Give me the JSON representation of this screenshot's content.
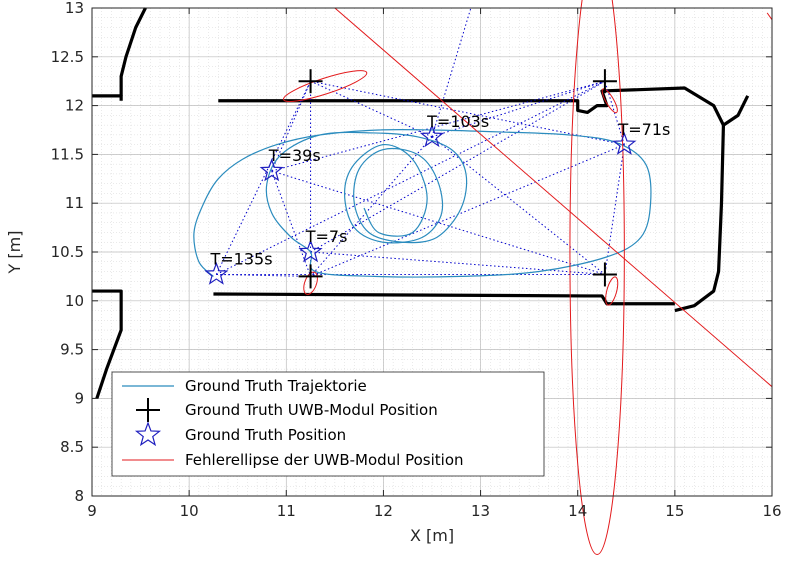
{
  "chart_data": {
    "type": "scatter",
    "title": "",
    "xlabel": "X [m]",
    "ylabel": "Y [m]",
    "xlim": [
      9,
      16
    ],
    "ylim": [
      8,
      13
    ],
    "grid": "on",
    "minor_grid": "on",
    "legend_position": "bottom-left",
    "x_ticks": [
      {
        "value": 9,
        "label": "9"
      },
      {
        "value": 10,
        "label": "10"
      },
      {
        "value": 11,
        "label": "11"
      },
      {
        "value": 12,
        "label": "12"
      },
      {
        "value": 13,
        "label": "13"
      },
      {
        "value": 14,
        "label": "14"
      },
      {
        "value": 15,
        "label": "15"
      },
      {
        "value": 16,
        "label": "16"
      }
    ],
    "y_ticks": [
      {
        "value": 8,
        "label": "8"
      },
      {
        "value": 8.5,
        "label": "8.5"
      },
      {
        "value": 9,
        "label": "9"
      },
      {
        "value": 9.5,
        "label": "9.5"
      },
      {
        "value": 10,
        "label": "10"
      },
      {
        "value": 10.5,
        "label": "10.5"
      },
      {
        "value": 11,
        "label": "11"
      },
      {
        "value": 11.5,
        "label": "11.5"
      },
      {
        "value": 12,
        "label": "12"
      },
      {
        "value": 12.5,
        "label": "12.5"
      },
      {
        "value": 13,
        "label": "13"
      }
    ],
    "series": [
      {
        "name": "Ground Truth Trajektorie",
        "kind": "line",
        "color": "#2b8cbe",
        "points": [
          [
            10.25,
            10.25
          ],
          [
            10.1,
            10.4
          ],
          [
            10.05,
            10.7
          ],
          [
            10.15,
            11.0
          ],
          [
            10.3,
            11.25
          ],
          [
            10.55,
            11.45
          ],
          [
            10.9,
            11.6
          ],
          [
            11.35,
            11.7
          ],
          [
            11.95,
            11.75
          ],
          [
            12.5,
            11.75
          ],
          [
            13.2,
            11.73
          ],
          [
            13.9,
            11.7
          ],
          [
            14.4,
            11.62
          ],
          [
            14.7,
            11.4
          ],
          [
            14.75,
            11.0
          ],
          [
            14.65,
            10.65
          ],
          [
            14.3,
            10.45
          ],
          [
            13.6,
            10.3
          ],
          [
            12.8,
            10.25
          ],
          [
            11.9,
            10.25
          ],
          [
            11.3,
            10.3
          ],
          [
            11.25,
            10.5
          ],
          [
            11.05,
            10.65
          ],
          [
            10.85,
            10.9
          ],
          [
            10.8,
            11.2
          ],
          [
            10.95,
            11.5
          ],
          [
            11.35,
            11.7
          ],
          [
            11.9,
            11.72
          ],
          [
            12.35,
            11.68
          ],
          [
            12.7,
            11.55
          ],
          [
            12.85,
            11.3
          ],
          [
            12.8,
            10.95
          ],
          [
            12.55,
            10.65
          ],
          [
            12.2,
            10.6
          ],
          [
            11.85,
            10.7
          ],
          [
            11.7,
            11.0
          ],
          [
            11.75,
            11.35
          ],
          [
            12.0,
            11.55
          ],
          [
            12.35,
            11.5
          ],
          [
            12.55,
            11.25
          ],
          [
            12.6,
            10.9
          ],
          [
            12.4,
            10.65
          ],
          [
            12.0,
            10.6
          ],
          [
            11.7,
            10.75
          ],
          [
            11.6,
            11.1
          ],
          [
            11.7,
            11.4
          ],
          [
            12.0,
            11.6
          ],
          [
            12.3,
            11.45
          ],
          [
            12.45,
            11.05
          ],
          [
            12.3,
            10.7
          ],
          [
            11.95,
            10.7
          ],
          [
            11.8,
            10.95
          ]
        ]
      },
      {
        "name": "Ground Truth UWB-Modul Position",
        "kind": "marker-plus",
        "color": "#000000",
        "points": [
          [
            11.25,
            12.25
          ],
          [
            14.28,
            12.25
          ],
          [
            11.25,
            10.25
          ],
          [
            14.28,
            10.27
          ]
        ]
      },
      {
        "name": "Ground Truth Position",
        "kind": "marker-star",
        "color": "#1f1fbf",
        "points": [
          [
            12.5,
            11.68
          ],
          [
            14.48,
            11.6
          ],
          [
            10.85,
            11.33
          ],
          [
            11.25,
            10.5
          ],
          [
            10.28,
            10.27
          ]
        ]
      },
      {
        "name": "Fehlerellipse der UWB-Modul Position",
        "kind": "ellipse",
        "color": "#e31a1c",
        "ellipses": [
          {
            "cx": 11.4,
            "cy": 12.2,
            "rx": 0.45,
            "ry": 0.08,
            "angle_deg": -18
          },
          {
            "cx": 11.25,
            "cy": 10.18,
            "rx": 0.12,
            "ry": 0.06,
            "angle_deg": -70
          },
          {
            "cx": 14.35,
            "cy": 10.1,
            "rx": 0.15,
            "ry": 0.05,
            "angle_deg": -75
          },
          {
            "cx": 14.33,
            "cy": 12.05,
            "rx": 0.14,
            "ry": 0.04,
            "angle_deg": 60
          },
          {
            "cx": 14.2,
            "cy": 10.5,
            "rx": 0.28,
            "ry": 3.1,
            "angle_deg": 0
          }
        ],
        "lines": [
          {
            "x1": 11.5,
            "y1": 13.0,
            "x2": 16.0,
            "y2": 9.12
          },
          {
            "x1": 15.95,
            "y1": 12.95,
            "x2": 16.0,
            "y2": 12.88
          }
        ]
      }
    ],
    "connections": {
      "name": "",
      "style": "dotted",
      "color": "#0000cc",
      "segments": [
        [
          12.5,
          11.68,
          11.25,
          12.25
        ],
        [
          12.5,
          11.68,
          14.28,
          12.25
        ],
        [
          12.5,
          11.68,
          11.25,
          10.25
        ],
        [
          12.5,
          11.68,
          14.28,
          10.27
        ],
        [
          14.48,
          11.6,
          11.25,
          12.25
        ],
        [
          14.48,
          11.6,
          14.28,
          12.25
        ],
        [
          14.48,
          11.6,
          11.25,
          10.25
        ],
        [
          14.48,
          11.6,
          14.28,
          10.27
        ],
        [
          10.85,
          11.33,
          11.25,
          12.25
        ],
        [
          10.85,
          11.33,
          14.28,
          12.25
        ],
        [
          10.85,
          11.33,
          11.25,
          10.25
        ],
        [
          10.85,
          11.33,
          14.28,
          10.27
        ],
        [
          11.25,
          10.5,
          11.25,
          12.25
        ],
        [
          11.25,
          10.5,
          14.28,
          12.25
        ],
        [
          11.25,
          10.5,
          11.25,
          10.25
        ],
        [
          11.25,
          10.5,
          14.28,
          10.27
        ],
        [
          10.28,
          10.27,
          11.25,
          12.25
        ],
        [
          10.28,
          10.27,
          14.28,
          12.25
        ],
        [
          10.28,
          10.27,
          11.25,
          10.25
        ],
        [
          10.28,
          10.27,
          14.28,
          10.27
        ],
        [
          12.5,
          11.68,
          12.9,
          13.0
        ]
      ]
    },
    "map_walls": {
      "color": "#000000",
      "polylines": [
        [
          [
            9.55,
            13.0
          ],
          [
            9.45,
            12.8
          ],
          [
            9.35,
            12.5
          ],
          [
            9.3,
            12.3
          ],
          [
            9.3,
            12.1
          ]
        ],
        [
          [
            9.0,
            12.1
          ],
          [
            9.3,
            12.1
          ],
          [
            9.3,
            12.05
          ]
        ],
        [
          [
            10.3,
            12.05
          ],
          [
            14.0,
            12.05
          ],
          [
            14.0,
            11.95
          ],
          [
            14.1,
            11.93
          ],
          [
            14.2,
            12.0
          ],
          [
            14.3,
            12.0
          ],
          [
            14.25,
            12.15
          ],
          [
            15.1,
            12.18
          ],
          [
            15.4,
            12.0
          ],
          [
            15.5,
            11.8
          ]
        ],
        [
          [
            15.5,
            11.8
          ],
          [
            15.48,
            11.0
          ],
          [
            15.45,
            10.3
          ],
          [
            15.4,
            10.1
          ],
          [
            15.2,
            9.95
          ],
          [
            15.0,
            9.9
          ]
        ],
        [
          [
            10.25,
            10.07
          ],
          [
            14.1,
            10.05
          ],
          [
            14.25,
            10.05
          ],
          [
            14.3,
            9.97
          ],
          [
            15.0,
            9.97
          ]
        ],
        [
          [
            9.0,
            10.1
          ],
          [
            9.3,
            10.1
          ],
          [
            9.3,
            9.7
          ],
          [
            9.15,
            9.3
          ],
          [
            9.05,
            9.0
          ]
        ],
        [
          [
            15.5,
            11.8
          ],
          [
            15.65,
            11.9
          ],
          [
            15.75,
            12.1
          ]
        ]
      ]
    },
    "annotations": [
      {
        "text": "T=103s",
        "x": 12.45,
        "y": 11.78
      },
      {
        "text": "T=71s",
        "x": 14.42,
        "y": 11.7
      },
      {
        "text": "T=39s",
        "x": 10.82,
        "y": 11.43
      },
      {
        "text": "T=7s",
        "x": 11.2,
        "y": 10.6
      },
      {
        "text": "T=135s",
        "x": 10.22,
        "y": 10.37
      }
    ]
  }
}
